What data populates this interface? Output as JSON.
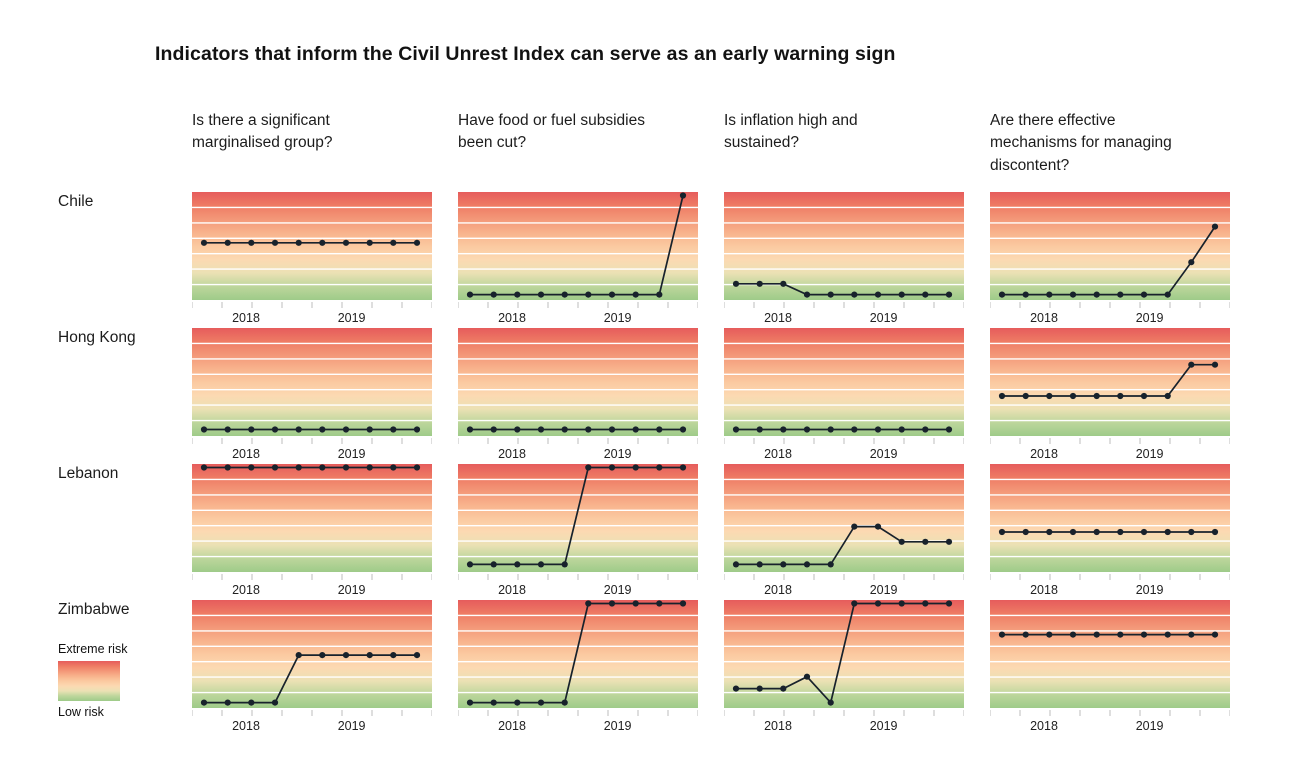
{
  "title": "Indicators that inform the Civil Unrest Index can serve as an early warning sign",
  "legend": {
    "top_label": "Extreme risk",
    "bottom_label": "Low risk"
  },
  "columns": [
    "Is there a significant\nmarginalised group?",
    "Have food or fuel subsidies\nbeen cut?",
    "Is inflation high and\nsustained?",
    "Are there effective\nmechanisms for managing\ndiscontent?"
  ],
  "colors": {
    "line": "#18222c",
    "grid_line": "#ffffff",
    "tick": "#bdbdbd",
    "text": "#1c1c1c",
    "gradient_stops": [
      "#e65c5c",
      "#ee7b64",
      "#f39778",
      "#f8b28c",
      "#fbc9a0",
      "#fcd9b2",
      "#ebe1b4",
      "#bdd69c",
      "#9ecb89"
    ]
  },
  "chart_data": {
    "type": "line",
    "title": "Indicators that inform the Civil Unrest Index can serve as an early warning sign",
    "x_axis": {
      "year_labels": [
        "2018",
        "2019"
      ],
      "year_label_positions": [
        0.225,
        0.665
      ],
      "points_per_series": 10,
      "description": "Quarterly observations, mid-2017 to late-2019"
    },
    "y_axis": {
      "description": "Risk level: 0 = low risk (bottom, green), 100 = extreme risk (top, red)",
      "range": [
        0,
        100
      ]
    },
    "columns": [
      "Is there a significant marginalised group?",
      "Have food or fuel subsidies been cut?",
      "Is inflation high and sustained?",
      "Are there effective mechanisms for managing discontent?"
    ],
    "cells": [
      {
        "country": "Chile",
        "series": [
          [
            53,
            53,
            53,
            53,
            53,
            53,
            53,
            53,
            53,
            53
          ],
          [
            5,
            5,
            5,
            5,
            5,
            5,
            5,
            5,
            5,
            97
          ],
          [
            15,
            15,
            15,
            5,
            5,
            5,
            5,
            5,
            5,
            5
          ],
          [
            5,
            5,
            5,
            5,
            5,
            5,
            5,
            5,
            35,
            68
          ]
        ]
      },
      {
        "country": "Hong Kong",
        "series": [
          [
            6,
            6,
            6,
            6,
            6,
            6,
            6,
            6,
            6,
            6
          ],
          [
            6,
            6,
            6,
            6,
            6,
            6,
            6,
            6,
            6,
            6
          ],
          [
            6,
            6,
            6,
            6,
            6,
            6,
            6,
            6,
            6,
            6
          ],
          [
            37,
            37,
            37,
            37,
            37,
            37,
            37,
            37,
            66,
            66
          ]
        ]
      },
      {
        "country": "Lebanon",
        "series": [
          [
            99,
            99,
            99,
            99,
            99,
            99,
            99,
            99,
            99,
            99
          ],
          [
            7,
            7,
            7,
            7,
            7,
            99,
            99,
            99,
            99,
            99
          ],
          [
            7,
            7,
            7,
            7,
            7,
            42,
            42,
            28,
            28,
            28
          ],
          [
            37,
            37,
            37,
            37,
            37,
            37,
            37,
            37,
            37,
            37
          ]
        ]
      },
      {
        "country": "Zimbabwe",
        "series": [
          [
            5,
            5,
            5,
            5,
            49,
            49,
            49,
            49,
            49,
            49
          ],
          [
            5,
            5,
            5,
            5,
            5,
            98,
            98,
            98,
            98,
            98
          ],
          [
            18,
            18,
            18,
            29,
            5,
            98,
            98,
            98,
            98,
            98
          ],
          [
            68,
            68,
            68,
            68,
            68,
            68,
            68,
            68,
            68,
            68
          ]
        ]
      }
    ]
  }
}
